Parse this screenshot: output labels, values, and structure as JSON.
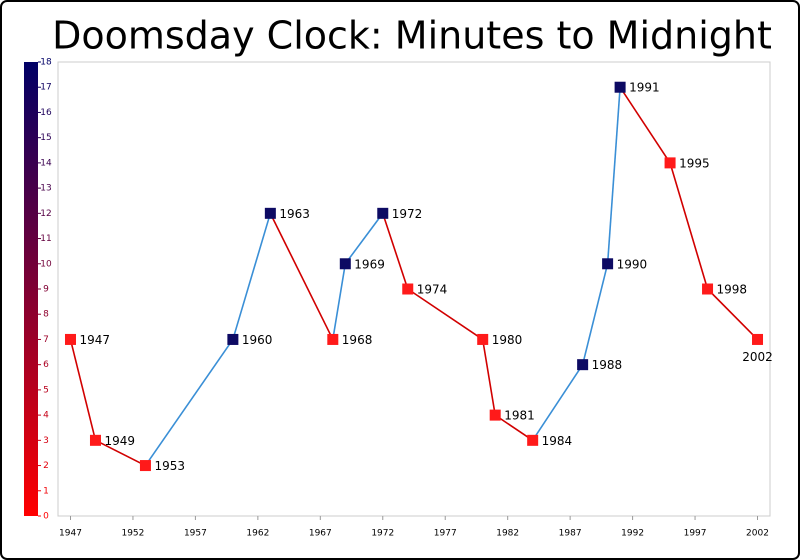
{
  "chart_data": {
    "type": "line",
    "title": "Doomsday Clock: Minutes to Midnight",
    "x": [
      1947,
      1949,
      1953,
      1960,
      1963,
      1968,
      1969,
      1972,
      1974,
      1980,
      1981,
      1984,
      1988,
      1990,
      1991,
      1995,
      1998,
      2002
    ],
    "values": [
      7,
      3,
      2,
      7,
      12,
      7,
      10,
      12,
      9,
      7,
      4,
      3,
      6,
      10,
      17,
      14,
      9,
      7
    ],
    "xlim": [
      1946,
      2003
    ],
    "xticks": [
      1947,
      1952,
      1957,
      1962,
      1967,
      1972,
      1977,
      1982,
      1987,
      1992,
      1997,
      2002
    ],
    "ylim": [
      0,
      18
    ],
    "yticks": [
      0,
      1,
      2,
      3,
      4,
      5,
      6,
      7,
      8,
      9,
      10,
      11,
      12,
      13,
      14,
      15,
      16,
      17,
      18
    ],
    "rise_color": "#3a8fd6",
    "fall_color": "#d10000",
    "rise_marker_color": "#0d0a63",
    "fall_marker_color": "#ff1a1a",
    "colorbar_colors": [
      "#ff0000",
      "#000066"
    ],
    "data_labels": true
  }
}
